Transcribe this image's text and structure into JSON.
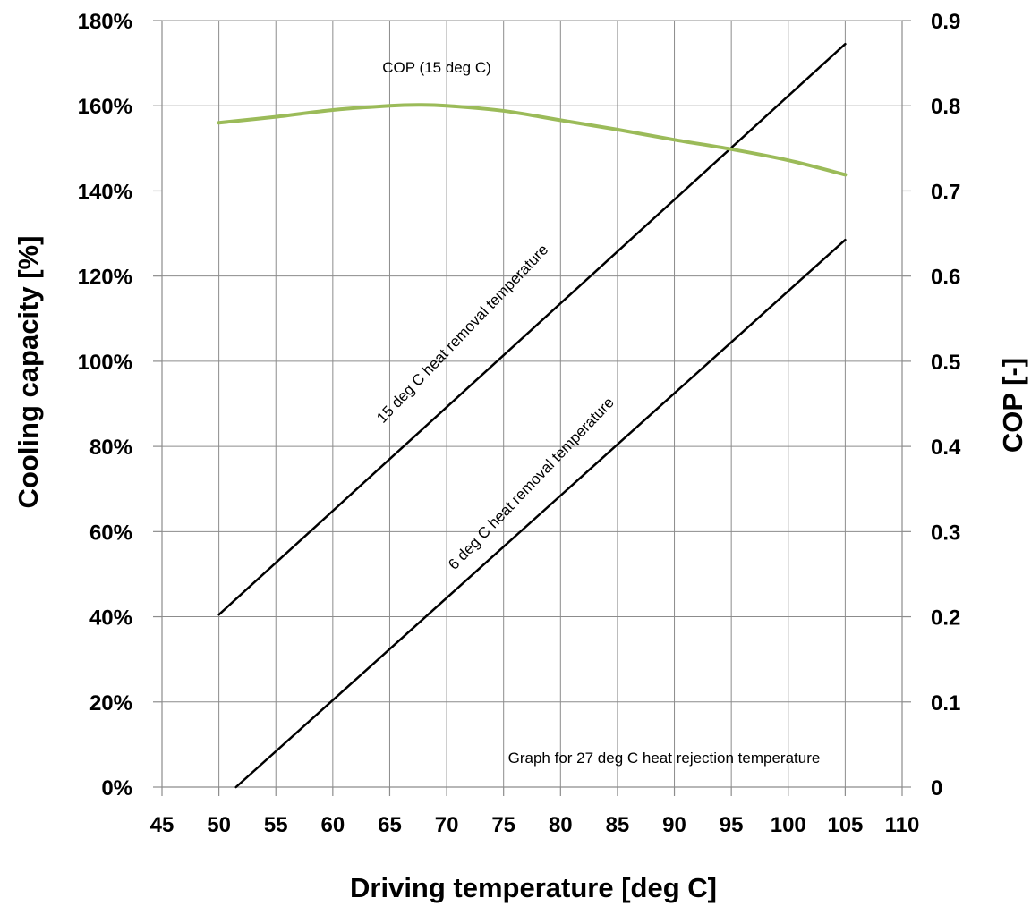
{
  "chart_data": {
    "type": "line",
    "title": "",
    "xlabel": "Driving temperature [deg C]",
    "ylabel_left": "Cooling capacity [%]",
    "ylabel_right": "COP [-]",
    "x_ticks": [
      "45",
      "50",
      "55",
      "60",
      "65",
      "70",
      "75",
      "80",
      "85",
      "90",
      "95",
      "100",
      "105",
      "110"
    ],
    "y_left_ticks": [
      "0%",
      "20%",
      "40%",
      "60%",
      "80%",
      "100%",
      "120%",
      "140%",
      "160%",
      "180%"
    ],
    "y_right_ticks": [
      "0",
      "0.1",
      "0.2",
      "0.3",
      "0.4",
      "0.5",
      "0.6",
      "0.7",
      "0.8",
      "0.9"
    ],
    "xlim": [
      45,
      110
    ],
    "ylim_left": [
      0,
      180
    ],
    "ylim_right": [
      0,
      0.9
    ],
    "grid": true,
    "series": [
      {
        "name": "15 deg C  heat removal temperature",
        "axis": "left",
        "color": "#000000",
        "x": [
          50,
          105
        ],
        "y": [
          40.5,
          174.5
        ]
      },
      {
        "name": "6 deg C  heat removal temperature",
        "axis": "left",
        "color": "#000000",
        "x": [
          51.5,
          105
        ],
        "y": [
          0,
          128.5
        ]
      },
      {
        "name": "COP (15 deg C)",
        "axis": "right",
        "color": "#9bbb59",
        "x": [
          50,
          55,
          60,
          65,
          67.5,
          70,
          75,
          80,
          85,
          90,
          95,
          100,
          105
        ],
        "y": [
          0.78,
          0.787,
          0.795,
          0.8,
          0.801,
          0.8,
          0.794,
          0.783,
          0.772,
          0.76,
          0.749,
          0.736,
          0.719
        ]
      }
    ],
    "annotations": [
      "COP (15 deg C)",
      "15 deg C  heat removal temperature",
      "6 deg C  heat removal temperature",
      "Graph for 27 deg C heat rejection temperature"
    ]
  }
}
